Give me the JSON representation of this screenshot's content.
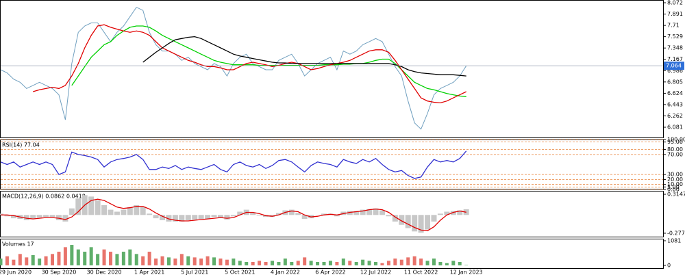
{
  "chart_data": [
    {
      "type": "line",
      "categories": [
        null,
        null,
        "29 Jun 2020",
        null,
        null,
        null,
        null,
        null,
        null,
        "30 Sep 2020",
        null,
        null,
        null,
        null,
        null,
        null,
        "30 Dec 2020",
        null,
        null,
        null,
        null,
        null,
        null,
        "1 Apr 2021",
        null,
        null,
        null,
        null,
        null,
        null,
        "5 Jul 2021",
        null,
        null,
        null,
        null,
        null,
        null,
        "5 Oct 2021",
        null,
        null,
        null,
        null,
        null,
        null,
        "4 Jan 2022",
        null,
        null,
        null,
        null,
        null,
        null,
        "6 Apr 2022",
        null,
        null,
        null,
        null,
        null,
        null,
        "12 Jul 2022",
        null,
        null,
        null,
        null,
        null,
        null,
        "11 Oct 2022",
        null,
        null,
        null,
        null,
        null,
        null,
        "12 Jan 2023"
      ],
      "series": [
        {
          "color": "#6f9fbf",
          "values": [
            7.0,
            6.95,
            6.85,
            6.8,
            6.7,
            6.75,
            6.8,
            6.75,
            6.7,
            6.6,
            6.2,
            7.1,
            7.6,
            7.7,
            7.75,
            7.75,
            7.6,
            7.45,
            7.6,
            7.7,
            7.85,
            8.0,
            7.95,
            7.6,
            7.4,
            7.3,
            7.3,
            7.25,
            7.15,
            7.2,
            7.1,
            7.05,
            7.0,
            7.1,
            7.05,
            6.9,
            7.1,
            7.2,
            7.25,
            7.1,
            7.05,
            7.0,
            7.0,
            7.15,
            7.2,
            7.25,
            7.1,
            6.9,
            7.0,
            7.1,
            7.15,
            7.2,
            7.0,
            7.3,
            7.25,
            7.3,
            7.4,
            7.45,
            7.5,
            7.45,
            7.25,
            7.05,
            6.9,
            6.5,
            6.15,
            6.05,
            6.3,
            6.6,
            6.7,
            6.75,
            6.8,
            6.9,
            7.064
          ]
        },
        {
          "color": "#00d000",
          "values": [
            null,
            null,
            null,
            null,
            null,
            null,
            null,
            null,
            null,
            null,
            null,
            6.75,
            6.9,
            7.05,
            7.2,
            7.3,
            7.4,
            7.45,
            7.55,
            7.62,
            7.68,
            7.7,
            7.7,
            7.68,
            7.62,
            7.55,
            7.5,
            7.45,
            7.4,
            7.35,
            7.3,
            7.25,
            7.2,
            7.15,
            7.12,
            7.1,
            7.08,
            7.08,
            7.08,
            7.08,
            7.07,
            7.07,
            7.07,
            7.07,
            7.07,
            7.07,
            7.07,
            7.07,
            7.07,
            7.07,
            7.08,
            7.08,
            7.08,
            7.09,
            7.09,
            7.1,
            7.1,
            7.12,
            7.15,
            7.17,
            7.17,
            7.1,
            7.0,
            6.9,
            6.8,
            6.75,
            6.7,
            6.68,
            6.65,
            6.62,
            6.6,
            6.58,
            6.57
          ]
        },
        {
          "color": "#e00000",
          "values": [
            null,
            null,
            null,
            null,
            null,
            6.65,
            6.68,
            6.7,
            6.72,
            6.7,
            6.75,
            6.9,
            7.1,
            7.35,
            7.55,
            7.7,
            7.72,
            7.68,
            7.65,
            7.62,
            7.6,
            7.62,
            7.6,
            7.55,
            7.45,
            7.35,
            7.3,
            7.25,
            7.2,
            7.15,
            7.12,
            7.08,
            7.05,
            7.05,
            7.03,
            7.0,
            7.0,
            7.05,
            7.1,
            7.12,
            7.1,
            7.08,
            7.05,
            7.07,
            7.1,
            7.12,
            7.1,
            7.05,
            7.0,
            7.02,
            7.05,
            7.08,
            7.1,
            7.12,
            7.15,
            7.2,
            7.25,
            7.3,
            7.32,
            7.32,
            7.28,
            7.15,
            7.0,
            6.85,
            6.7,
            6.55,
            6.5,
            6.48,
            6.47,
            6.5,
            6.55,
            6.6,
            6.65
          ]
        },
        {
          "color": "#000000",
          "values": [
            null,
            null,
            null,
            null,
            null,
            null,
            null,
            null,
            null,
            null,
            null,
            null,
            null,
            null,
            null,
            null,
            null,
            null,
            null,
            null,
            null,
            null,
            7.12,
            7.2,
            7.28,
            7.35,
            7.42,
            7.48,
            7.5,
            7.52,
            7.53,
            7.5,
            7.45,
            7.4,
            7.35,
            7.3,
            7.25,
            7.22,
            7.2,
            7.18,
            7.16,
            7.14,
            7.12,
            7.11,
            7.11,
            7.1,
            7.1,
            7.1,
            7.1,
            7.1,
            7.1,
            7.1,
            7.1,
            7.1,
            7.1,
            7.1,
            7.1,
            7.1,
            7.1,
            7.1,
            7.1,
            7.08,
            7.05,
            7.0,
            6.97,
            6.95,
            6.94,
            6.93,
            6.92,
            6.92,
            6.92,
            6.91,
            6.9
          ]
        }
      ],
      "ylim": [
        5.906,
        8.116
      ],
      "yticks": [
        8.072,
        7.891,
        7.71,
        7.529,
        7.348,
        7.167,
        6.986,
        6.805,
        6.624,
        6.443,
        6.262,
        6.081
      ],
      "grid": false
    },
    {
      "type": "line",
      "title": "RSI(14) 77.04",
      "series": [
        {
          "color": "#3030d0",
          "values": [
            55,
            50,
            55,
            45,
            50,
            55,
            50,
            55,
            50,
            30,
            35,
            75,
            70,
            68,
            65,
            60,
            45,
            55,
            60,
            62,
            65,
            70,
            60,
            40,
            40,
            45,
            42,
            48,
            40,
            45,
            42,
            40,
            45,
            50,
            40,
            35,
            50,
            55,
            48,
            45,
            50,
            42,
            48,
            58,
            60,
            55,
            45,
            35,
            48,
            55,
            52,
            50,
            45,
            60,
            55,
            52,
            60,
            55,
            62,
            50,
            40,
            35,
            38,
            28,
            22,
            25,
            45,
            60,
            55,
            58,
            55,
            62,
            77.04
          ]
        }
      ],
      "ylim": [
        0,
        100
      ],
      "yticks": [
        {
          "value": 100,
          "label": "100.00"
        },
        {
          "value": 95,
          "label": "95.00"
        },
        {
          "value": 80,
          "label": "80.00"
        },
        {
          "value": 70,
          "label": "70.00"
        },
        {
          "value": 30,
          "label": "30.00"
        },
        {
          "value": 20,
          "label": "20.00"
        },
        {
          "value": 10,
          "label": "10.00"
        },
        {
          "value": 5,
          "label": "5.00"
        },
        {
          "value": 0,
          "label": "0.00"
        }
      ],
      "grid": true,
      "grid_color": "#e8823a"
    },
    {
      "type": "bar",
      "title": "MACD(12,26,9) 0.0862 0.0418",
      "series": [
        {
          "color": "#c8c8c8",
          "values": [
            0.02,
            -0.02,
            -0.05,
            -0.06,
            -0.08,
            -0.06,
            -0.04,
            -0.03,
            -0.03,
            -0.08,
            -0.1,
            0.1,
            0.25,
            0.3,
            0.28,
            0.22,
            0.15,
            0.08,
            0.05,
            0.08,
            0.12,
            0.15,
            0.12,
            0.02,
            -0.05,
            -0.08,
            -0.1,
            -0.1,
            -0.1,
            -0.08,
            -0.07,
            -0.06,
            -0.06,
            -0.03,
            -0.04,
            -0.07,
            -0.02,
            0.05,
            0.08,
            0.03,
            -0.01,
            -0.03,
            -0.03,
            0.03,
            0.07,
            0.08,
            0.03,
            -0.06,
            -0.05,
            0.0,
            0.02,
            0.02,
            -0.02,
            0.05,
            0.06,
            0.06,
            0.08,
            0.09,
            0.1,
            0.07,
            -0.02,
            -0.1,
            -0.15,
            -0.2,
            -0.25,
            -0.27,
            -0.22,
            -0.1,
            0.02,
            0.05,
            0.06,
            0.07,
            0.0862
          ]
        },
        {
          "type": "line",
          "color": "#e00000",
          "values": [
            0.0,
            0.0,
            -0.01,
            -0.03,
            -0.05,
            -0.06,
            -0.05,
            -0.04,
            -0.04,
            -0.05,
            -0.07,
            -0.03,
            0.05,
            0.15,
            0.22,
            0.24,
            0.22,
            0.17,
            0.12,
            0.1,
            0.11,
            0.13,
            0.13,
            0.09,
            0.03,
            -0.02,
            -0.06,
            -0.08,
            -0.09,
            -0.09,
            -0.08,
            -0.07,
            -0.06,
            -0.05,
            -0.04,
            -0.05,
            -0.04,
            0.0,
            0.04,
            0.04,
            0.02,
            -0.01,
            -0.02,
            0.0,
            0.04,
            0.06,
            0.05,
            0.0,
            -0.03,
            -0.02,
            0.0,
            0.01,
            0.0,
            0.02,
            0.04,
            0.05,
            0.06,
            0.08,
            0.09,
            0.08,
            0.04,
            -0.03,
            -0.09,
            -0.14,
            -0.19,
            -0.23,
            -0.24,
            -0.18,
            -0.08,
            0.0,
            0.04,
            0.06,
            0.0418
          ]
        }
      ],
      "ylim": [
        -0.34,
        0.367
      ],
      "yticks": [
        0.3147,
        -0.2774
      ],
      "grid": false
    },
    {
      "type": "bar",
      "title": "Volumes 17",
      "up_color": "#5fae6a",
      "down_color": "#e8736b",
      "series": [
        {
          "values": [
            300,
            400,
            250,
            500,
            350,
            450,
            300,
            400,
            500,
            600,
            800,
            900,
            700,
            600,
            800,
            500,
            700,
            600,
            500,
            600,
            700,
            500,
            400,
            600,
            300,
            400,
            350,
            300,
            500,
            400,
            350,
            300,
            400,
            350,
            300,
            250,
            300,
            200,
            150,
            150,
            200,
            150,
            200,
            150,
            300,
            150,
            200,
            350,
            200,
            150,
            150,
            200,
            150,
            300,
            200,
            150,
            250,
            200,
            150,
            100,
            200,
            300,
            250,
            350,
            400,
            300,
            200,
            300,
            150,
            100,
            200,
            150,
            17
          ]
        }
      ],
      "ylim": [
        -150,
        1171
      ],
      "yticks": [
        1081,
        0
      ],
      "grid": false
    }
  ]
}
